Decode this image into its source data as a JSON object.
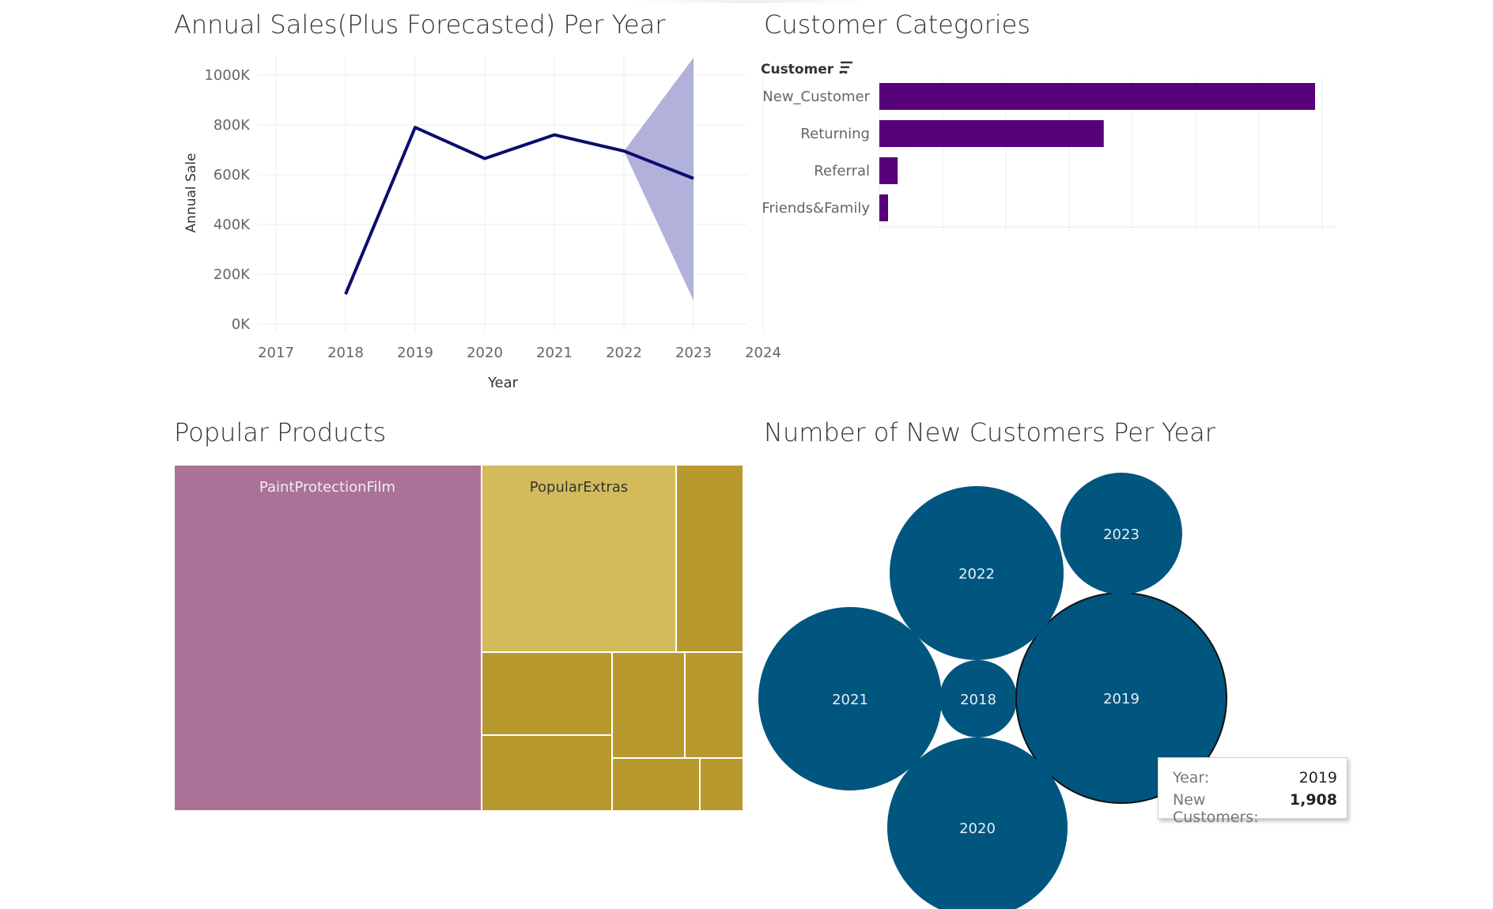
{
  "titles": {
    "sales": "Annual Sales(Plus Forecasted) Per Year",
    "categories": "Customer Categories",
    "products": "Popular Products",
    "new_customers": "Number of New Customers Per Year"
  },
  "colors": {
    "sales_line": "#0c0c6e",
    "forecast_band": "#a8a8d8",
    "category_bar": "#560079",
    "product_ppf": "#ab7298",
    "product_extras": "#d3bb5c",
    "product_other": "#b8992e",
    "bubble": "#00567f"
  },
  "chart_data": [
    {
      "type": "line",
      "title": "Annual Sales(Plus Forecasted) Per Year",
      "xlabel": "Year",
      "ylabel": "Annual Sale",
      "x_ticks": [
        "2017",
        "2018",
        "2019",
        "2020",
        "2021",
        "2022",
        "2023",
        "2024"
      ],
      "y_ticks": [
        "0K",
        "200K",
        "400K",
        "600K",
        "800K",
        "1000K"
      ],
      "xlim": [
        2017,
        2024
      ],
      "ylim": [
        0,
        1000000
      ],
      "grid": true,
      "series": [
        {
          "x": [
            2018,
            2019,
            2020,
            2021,
            2022,
            2023
          ],
          "y": [
            120000,
            790000,
            665000,
            760000,
            695000,
            585000
          ]
        }
      ],
      "forecast_band": {
        "x": [
          2022,
          2023
        ],
        "lower": [
          695000,
          95000
        ],
        "upper": [
          695000,
          1070000
        ]
      }
    },
    {
      "type": "bar",
      "orientation": "horizontal",
      "title": "Customer Categories",
      "header": "Customer ..",
      "categories": [
        "New_Customer",
        "Returning",
        "Referral",
        "Friends&Family"
      ],
      "values": [
        1000,
        515,
        42,
        20
      ],
      "grid": true
    },
    {
      "type": "treemap",
      "title": "Popular Products",
      "labels": [
        "PaintProtectionFilm",
        "PopularExtras"
      ]
    },
    {
      "type": "bubble",
      "title": "Number of New Customers Per Year",
      "bubbles": [
        {
          "label": "2018"
        },
        {
          "label": "2019",
          "value": 1908
        },
        {
          "label": "2020"
        },
        {
          "label": "2021"
        },
        {
          "label": "2022"
        },
        {
          "label": "2023"
        }
      ]
    }
  ],
  "tooltip": {
    "year_label": "Year:",
    "year_value": "2019",
    "customers_label": "New Customers:",
    "customers_value": "1,908"
  }
}
